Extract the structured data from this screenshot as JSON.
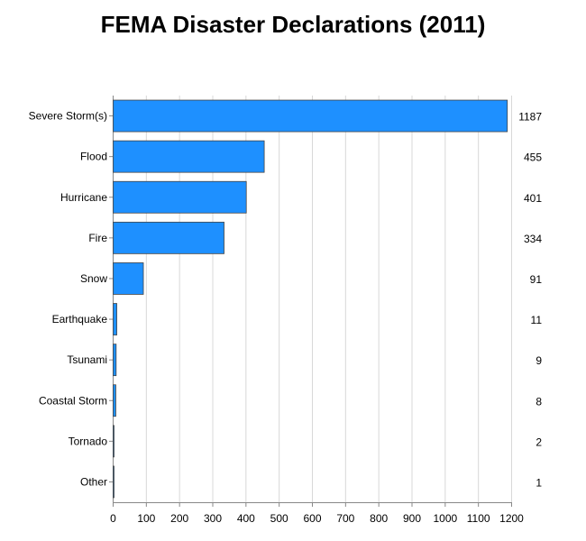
{
  "chart_data": {
    "type": "bar",
    "orientation": "horizontal",
    "title": "FEMA Disaster Declarations (2011)",
    "xlabel": "",
    "ylabel": "",
    "categories": [
      "Severe Storm(s)",
      "Flood",
      "Hurricane",
      "Fire",
      "Snow",
      "Earthquake",
      "Tsunami",
      "Coastal Storm",
      "Tornado",
      "Other"
    ],
    "values": [
      1187,
      455,
      401,
      334,
      91,
      11,
      9,
      8,
      2,
      1
    ],
    "xlim": [
      0,
      1200
    ],
    "xticks": [
      0,
      100,
      200,
      300,
      400,
      500,
      600,
      700,
      800,
      900,
      1000,
      1100,
      1200
    ],
    "grid": "vertical",
    "legend": "none",
    "colors": {
      "bar": "#1e90ff",
      "bar_edge": "#444444",
      "grid": "#d8d8d8",
      "axis": "#888888"
    },
    "value_labels": "right-margin"
  }
}
